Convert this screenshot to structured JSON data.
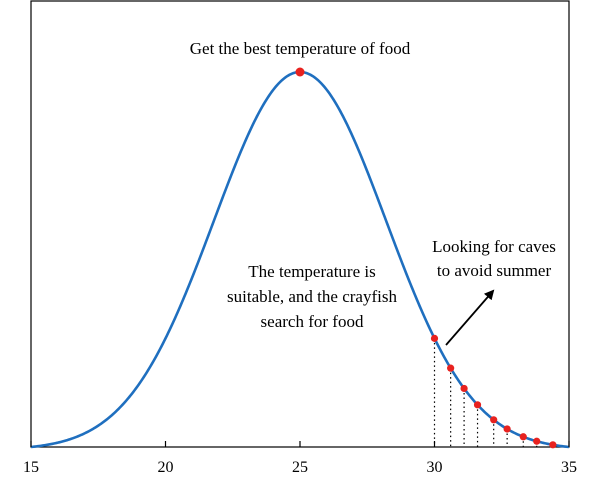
{
  "chart_data": {
    "type": "line",
    "title": "",
    "xlabel": "",
    "ylabel": "",
    "xlim": [
      15,
      35
    ],
    "xticks": [
      "15",
      "20",
      "25",
      "30",
      "35"
    ],
    "grid": false,
    "series": [
      {
        "curve": "gaussian",
        "mean": 25,
        "sd": 3.2,
        "color": "#1f6fbf"
      }
    ],
    "peak_point": {
      "x": 25,
      "color": "#e8221f"
    },
    "red_points_x": [
      30.0,
      30.6,
      31.1,
      31.6,
      32.2,
      32.7,
      33.3,
      33.8,
      34.4
    ],
    "dotted_drop_x": [
      30.0,
      30.6,
      31.1,
      31.6,
      32.2,
      32.7,
      33.3,
      33.8
    ],
    "annotations": {
      "peak": "Get the best temperature of food",
      "middle": [
        "The temperature is",
        "suitable, and the crayfish",
        "search for food"
      ],
      "right": [
        "Looking for caves",
        "to avoid summer"
      ]
    },
    "point_color": "#e8221f",
    "line_color": "#1f6fbf"
  }
}
